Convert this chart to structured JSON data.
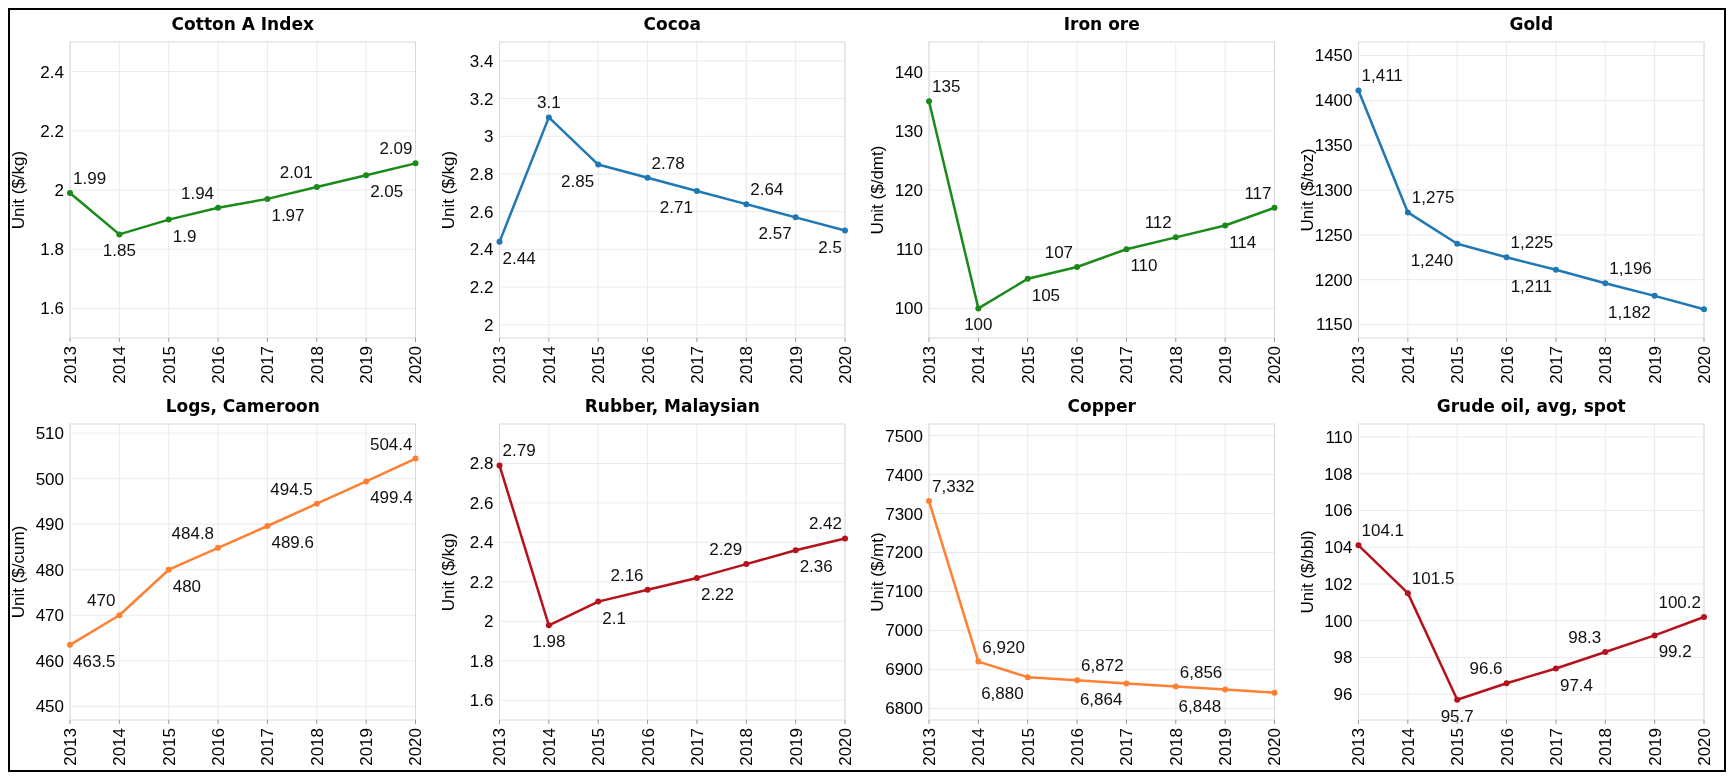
{
  "chart_data": [
    {
      "type": "line",
      "title": "Cotton A Index",
      "ylabel": "Unit ($/kg)",
      "categories": [
        "2013",
        "2014",
        "2015",
        "2016",
        "2017",
        "2018",
        "2019",
        "2020"
      ],
      "series": [
        {
          "color": "#1a8a1a",
          "values": [
            1.99,
            1.85,
            1.9,
            1.94,
            1.97,
            2.01,
            2.05,
            2.09
          ]
        }
      ],
      "ylim": [
        1.5,
        2.5
      ],
      "yticks": [
        1.6,
        1.8,
        2,
        2.2,
        2.4
      ],
      "grid": true,
      "marker": "circle",
      "data_labels": true
    },
    {
      "type": "line",
      "title": "Cocoa",
      "ylabel": "Unit ($/kg)",
      "categories": [
        "2013",
        "2014",
        "2015",
        "2016",
        "2017",
        "2018",
        "2019",
        "2020"
      ],
      "series": [
        {
          "color": "#1f77b4",
          "values": [
            2.44,
            3.1,
            2.85,
            2.78,
            2.71,
            2.64,
            2.57,
            2.5
          ]
        }
      ],
      "ylim": [
        1.93,
        3.5
      ],
      "yticks": [
        2,
        2.2,
        2.4,
        2.6,
        2.8,
        3,
        3.2,
        3.4
      ],
      "grid": true,
      "marker": "circle",
      "data_labels": true
    },
    {
      "type": "line",
      "title": "Iron ore",
      "ylabel": "Unit ($/dmt)",
      "categories": [
        "2013",
        "2014",
        "2015",
        "2016",
        "2017",
        "2018",
        "2019",
        "2020"
      ],
      "series": [
        {
          "color": "#1a8a1a",
          "values": [
            135,
            100,
            105,
            107,
            110,
            112,
            114,
            117
          ]
        }
      ],
      "ylim": [
        95,
        145
      ],
      "yticks": [
        100,
        110,
        120,
        130,
        140
      ],
      "grid": true,
      "marker": "circle",
      "data_labels": true
    },
    {
      "type": "line",
      "title": "Gold",
      "ylabel": "Unit ($/toz)",
      "categories": [
        "2013",
        "2014",
        "2015",
        "2016",
        "2017",
        "2018",
        "2019",
        "2020"
      ],
      "series": [
        {
          "color": "#1f77b4",
          "values": [
            1411,
            1275,
            1240,
            1225,
            1211,
            1196,
            1182,
            1167
          ],
          "value_labels": [
            "1,411",
            "1,275",
            "1,240",
            "1,225",
            "1,211",
            "1,196",
            "1,182",
            null
          ]
        }
      ],
      "ylim": [
        1135,
        1465
      ],
      "yticks": [
        1150,
        1200,
        1250,
        1300,
        1350,
        1400,
        1450
      ],
      "grid": true,
      "marker": "circle"
    },
    {
      "type": "line",
      "title": "Logs, Cameroon",
      "ylabel": "Unit ($/cum)",
      "categories": [
        "2013",
        "2014",
        "2015",
        "2016",
        "2017",
        "2018",
        "2019",
        "2020"
      ],
      "series": [
        {
          "color": "#ff8033",
          "values": [
            463.5,
            470,
            480,
            484.8,
            489.6,
            494.5,
            499.4,
            504.4
          ]
        }
      ],
      "ylim": [
        447,
        512
      ],
      "yticks": [
        450,
        460,
        470,
        480,
        490,
        500,
        510
      ],
      "grid": true,
      "marker": "circle",
      "data_labels": true
    },
    {
      "type": "line",
      "title": "Rubber, Malaysian",
      "ylabel": "Unit ($/kg)",
      "categories": [
        "2013",
        "2014",
        "2015",
        "2016",
        "2017",
        "2018",
        "2019",
        "2020"
      ],
      "series": [
        {
          "color": "#b5121b",
          "values": [
            2.79,
            1.98,
            2.1,
            2.16,
            2.22,
            2.29,
            2.36,
            2.42
          ]
        }
      ],
      "ylim": [
        1.5,
        3.0
      ],
      "yticks": [
        1.6,
        1.8,
        2,
        2.2,
        2.4,
        2.6,
        2.8
      ],
      "grid": true,
      "marker": "circle",
      "data_labels": true
    },
    {
      "type": "line",
      "title": "Copper",
      "ylabel": "Unit ($/mt)",
      "categories": [
        "2013",
        "2014",
        "2015",
        "2016",
        "2017",
        "2018",
        "2019",
        "2020"
      ],
      "series": [
        {
          "color": "#ff8033",
          "values": [
            7332,
            6920,
            6880,
            6872,
            6864,
            6856,
            6848,
            6840
          ],
          "value_labels": [
            "7,332",
            "6,920",
            "6,880",
            "6,872",
            "6,864",
            "6,856",
            "6,848",
            null
          ]
        }
      ],
      "ylim": [
        6770,
        7530
      ],
      "yticks": [
        6800,
        6900,
        7000,
        7100,
        7200,
        7300,
        7400,
        7500
      ],
      "grid": true,
      "marker": "circle"
    },
    {
      "type": "line",
      "title": "Grude oil, avg, spot",
      "ylabel": "Unit ($/bbl)",
      "categories": [
        "2013",
        "2014",
        "2015",
        "2016",
        "2017",
        "2018",
        "2019",
        "2020"
      ],
      "series": [
        {
          "color": "#b5121b",
          "values": [
            104.1,
            101.5,
            95.7,
            96.6,
            97.4,
            98.3,
            99.2,
            100.2
          ]
        }
      ],
      "ylim": [
        94.6,
        110.7
      ],
      "yticks": [
        96,
        98,
        100,
        102,
        104,
        106,
        108,
        110
      ],
      "grid": true,
      "marker": "circle",
      "data_labels": true
    }
  ]
}
